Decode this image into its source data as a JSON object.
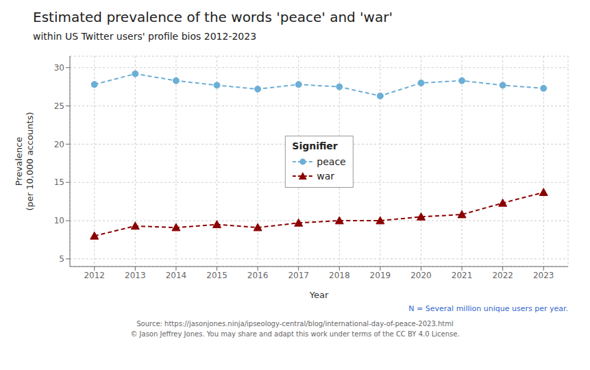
{
  "chart_data": {
    "type": "line",
    "title": "Estimated prevalence of the words 'peace' and 'war'",
    "subtitle": "within US Twitter users' profile bios 2012-2023",
    "x_label": "Year",
    "y_label": "Prevalence\n(per 10,000 accounts)",
    "x": [
      2012,
      2013,
      2014,
      2015,
      2016,
      2017,
      2018,
      2019,
      2020,
      2021,
      2022,
      2023
    ],
    "series": [
      {
        "name": "peace",
        "color": "#6baed6",
        "marker": "circle",
        "line_style": "dashed",
        "values": [
          27.8,
          29.2,
          28.3,
          27.7,
          27.2,
          27.8,
          27.5,
          26.3,
          28.0,
          28.3,
          27.7,
          27.3
        ]
      },
      {
        "name": "war",
        "color": "#8b0000",
        "marker": "triangle",
        "line_style": "dashed",
        "values": [
          8.0,
          9.3,
          9.1,
          9.5,
          9.1,
          9.7,
          10.0,
          10.0,
          10.5,
          10.8,
          12.3,
          13.7
        ]
      }
    ],
    "xlim": [
      2011.4,
      2023.6
    ],
    "xticks": [
      2012,
      2013,
      2014,
      2015,
      2016,
      2017,
      2018,
      2019,
      2020,
      2021,
      2022,
      2023
    ],
    "ylim": [
      4,
      31.5
    ],
    "yticks": [
      5,
      10,
      15,
      20,
      25,
      30
    ],
    "grid": true,
    "legend": "center",
    "legend_title": "Signifier",
    "annotations": [
      {
        "text": "N = Several million unique users per year.",
        "color": "#3366cc"
      },
      {
        "text": "Source: https://jasonjones.ninja/ipseology-central/blog/international-day-of-peace-2023.html",
        "color": "#666666"
      },
      {
        "text": "© Jason Jeffrey Jones. You may share and adapt this work under terms of the CC BY 4.0 License.",
        "color": "#666666"
      }
    ]
  }
}
